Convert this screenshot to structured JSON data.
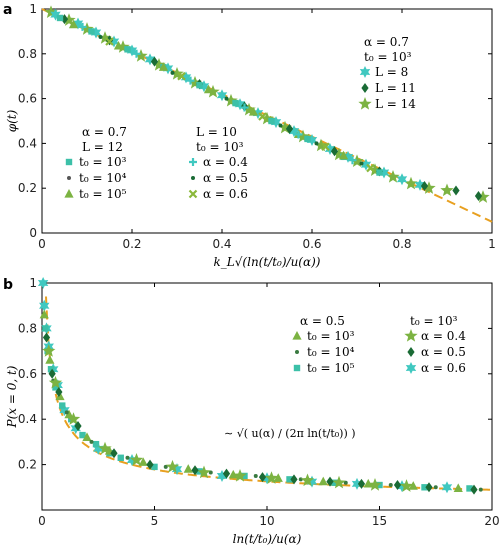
{
  "chart_data": [
    {
      "panel": "a",
      "type": "scatter",
      "xlabel": "k_L√(ln(t/t₀)/u(α))",
      "ylabel": "φ(t)",
      "xlim": [
        0,
        1
      ],
      "ylim": [
        0,
        1
      ],
      "xticks": [
        0,
        0.2,
        0.4,
        0.6,
        0.8,
        1
      ],
      "xtick_labels": [
        "0",
        "0.2",
        "0.4",
        "0.6",
        "0.8",
        "1"
      ],
      "yticks": [
        0,
        0.2,
        0.4,
        0.6,
        0.8,
        1
      ],
      "ytick_labels": [
        "0",
        "0.2",
        "0.4",
        "0.6",
        "0.8",
        "1"
      ],
      "reference_curve": {
        "x": [
          0,
          1
        ],
        "y": [
          1,
          0.05
        ],
        "color": "#e8a020",
        "dash": true
      },
      "legend_groups": [
        {
          "header": [
            "α = 0.7",
            "L = 12"
          ],
          "position": "mid-left",
          "entries": [
            {
              "label": "t₀ = 10³",
              "marker": "square",
              "color": "#3cc0a8"
            },
            {
              "label": "t₀ = 10⁴",
              "marker": "dot",
              "color": "#555555"
            },
            {
              "label": "t₀ = 10⁵",
              "marker": "triangle",
              "color": "#7cb342"
            }
          ]
        },
        {
          "header": [
            "L = 10",
            "t₀ = 10³"
          ],
          "position": "mid-center",
          "entries": [
            {
              "label": "α = 0.4",
              "marker": "plus",
              "color": "#40c8c0"
            },
            {
              "label": "α = 0.5",
              "marker": "dot",
              "color": "#1a6b35"
            },
            {
              "label": "α = 0.6",
              "marker": "cross",
              "color": "#8ab83a"
            }
          ]
        },
        {
          "header": [
            "α = 0.7",
            "t₀ = 10³"
          ],
          "position": "top-right",
          "entries": [
            {
              "label": "L = 8",
              "marker": "star6",
              "color": "#40c8c0"
            },
            {
              "label": "L = 11",
              "marker": "diamond",
              "color": "#1a6b35"
            },
            {
              "label": "L = 14",
              "marker": "star5",
              "color": "#7cb342"
            }
          ]
        }
      ],
      "series": [
        {
          "marker": "star5",
          "color": "#7cb342",
          "x": [
            0.02,
            0.06,
            0.1,
            0.14,
            0.18,
            0.22,
            0.26,
            0.3,
            0.34,
            0.38,
            0.42,
            0.46,
            0.5,
            0.54,
            0.58,
            0.62,
            0.66,
            0.7,
            0.74,
            0.78,
            0.82,
            0.86,
            0.9,
            0.98
          ],
          "y": [
            0.985,
            0.95,
            0.91,
            0.87,
            0.83,
            0.79,
            0.75,
            0.71,
            0.67,
            0.63,
            0.59,
            0.55,
            0.51,
            0.47,
            0.43,
            0.39,
            0.35,
            0.32,
            0.28,
            0.25,
            0.22,
            0.2,
            0.19,
            0.16
          ]
        },
        {
          "marker": "star6",
          "color": "#40c8c0",
          "x": [
            0.03,
            0.08,
            0.12,
            0.16,
            0.2,
            0.24,
            0.28,
            0.32,
            0.36,
            0.4,
            0.44,
            0.48,
            0.52,
            0.56,
            0.6,
            0.64,
            0.68,
            0.72,
            0.76,
            0.8,
            0.84
          ],
          "y": [
            0.975,
            0.935,
            0.895,
            0.855,
            0.815,
            0.775,
            0.735,
            0.695,
            0.655,
            0.615,
            0.575,
            0.535,
            0.495,
            0.455,
            0.415,
            0.375,
            0.34,
            0.305,
            0.27,
            0.24,
            0.215
          ]
        },
        {
          "marker": "diamond",
          "color": "#1a6b35",
          "x": [
            0.05,
            0.15,
            0.25,
            0.35,
            0.45,
            0.55,
            0.65,
            0.75,
            0.85,
            0.92,
            0.97
          ],
          "y": [
            0.955,
            0.86,
            0.765,
            0.665,
            0.565,
            0.465,
            0.365,
            0.275,
            0.21,
            0.19,
            0.165
          ]
        },
        {
          "marker": "square",
          "color": "#3cc0a8",
          "x": [
            0.04,
            0.11,
            0.19,
            0.27,
            0.35,
            0.43,
            0.51,
            0.59,
            0.67,
            0.75
          ],
          "y": [
            0.96,
            0.9,
            0.82,
            0.74,
            0.66,
            0.58,
            0.5,
            0.42,
            0.34,
            0.27
          ]
        },
        {
          "marker": "triangle",
          "color": "#7cb342",
          "x": [
            0.07,
            0.17,
            0.27,
            0.37,
            0.47,
            0.57,
            0.67
          ],
          "y": [
            0.93,
            0.835,
            0.74,
            0.64,
            0.54,
            0.44,
            0.345
          ]
        },
        {
          "marker": "plus",
          "color": "#40c8c0",
          "x": [
            0.09,
            0.21,
            0.33,
            0.45,
            0.57,
            0.69
          ],
          "y": [
            0.92,
            0.8,
            0.68,
            0.56,
            0.44,
            0.325
          ]
        },
        {
          "marker": "dot",
          "color": "#1a6b35",
          "x": [
            0.13,
            0.29,
            0.41,
            0.53,
            0.61,
            0.71
          ],
          "y": [
            0.875,
            0.715,
            0.6,
            0.48,
            0.4,
            0.31
          ]
        },
        {
          "marker": "cross",
          "color": "#8ab83a",
          "x": [
            0.15,
            0.31,
            0.49,
            0.63,
            0.73
          ],
          "y": [
            0.855,
            0.7,
            0.52,
            0.385,
            0.29
          ]
        }
      ]
    },
    {
      "panel": "b",
      "type": "scatter",
      "xlabel": "ln(t/t₀)/u(α)",
      "ylabel": "P(x = 0, t)",
      "annotation": "∼ √( u(α) / (2π ln(t/t₀)) )",
      "xlim": [
        0,
        20
      ],
      "ylim": [
        0,
        1
      ],
      "xticks": [
        0,
        5,
        10,
        15,
        20
      ],
      "xtick_labels": [
        "0",
        "5",
        "10",
        "15",
        "20"
      ],
      "yticks": [
        0.2,
        0.4,
        0.6,
        0.8,
        1
      ],
      "ytick_labels": [
        "0.2",
        "0.4",
        "0.6",
        "0.8",
        "1"
      ],
      "reference_curve": {
        "function": "sqrt(1/(2*pi*x))",
        "color": "#e8a020",
        "dash": true
      },
      "legend_groups": [
        {
          "header": [
            "α = 0.5"
          ],
          "position": "top-center",
          "entries": [
            {
              "label": "t₀ = 10³",
              "marker": "triangle",
              "color": "#7cb342"
            },
            {
              "label": "t₀ = 10⁴",
              "marker": "dot",
              "color": "#3a7a40"
            },
            {
              "label": "t₀ = 10⁵",
              "marker": "square",
              "color": "#3cc0a8"
            }
          ]
        },
        {
          "header": [
            "t₀ = 10³"
          ],
          "position": "top-right",
          "entries": [
            {
              "label": "α = 0.4",
              "marker": "star5",
              "color": "#7cb342"
            },
            {
              "label": "α = 0.5",
              "marker": "diamond",
              "color": "#1a6b35"
            },
            {
              "label": "α = 0.6",
              "marker": "star6",
              "color": "#40c8c0"
            }
          ]
        }
      ],
      "series": [
        {
          "marker": "star6",
          "color": "#40c8c0",
          "x": [
            0.05,
            0.1,
            0.2,
            0.3,
            0.5,
            0.7,
            1.0,
            1.5,
            2.5,
            4,
            6,
            8,
            10,
            12,
            14,
            16,
            18
          ],
          "y": [
            1.0,
            0.9,
            0.8,
            0.72,
            0.62,
            0.55,
            0.44,
            0.36,
            0.27,
            0.22,
            0.18,
            0.15,
            0.14,
            0.125,
            0.115,
            0.105,
            0.1
          ]
        },
        {
          "marker": "square",
          "color": "#3cc0a8",
          "x": [
            0.15,
            0.25,
            0.4,
            0.6,
            0.9,
            1.3,
            1.8,
            2.4,
            3.0,
            3.5,
            5,
            7,
            9,
            11,
            13,
            15,
            17,
            19
          ],
          "y": [
            0.8,
            0.7,
            0.62,
            0.54,
            0.46,
            0.4,
            0.33,
            0.29,
            0.25,
            0.23,
            0.19,
            0.17,
            0.15,
            0.135,
            0.12,
            0.11,
            0.1,
            0.095
          ]
        },
        {
          "marker": "triangle",
          "color": "#7cb342",
          "x": [
            0.1,
            0.35,
            0.8,
            1.2,
            2,
            3,
            4.5,
            6.5,
            8.5,
            10.5,
            12.5,
            14.5,
            16.5,
            18.5
          ],
          "y": [
            0.86,
            0.66,
            0.5,
            0.42,
            0.32,
            0.26,
            0.21,
            0.18,
            0.155,
            0.14,
            0.125,
            0.115,
            0.105,
            0.095
          ]
        },
        {
          "marker": "dot",
          "color": "#3a7a40",
          "x": [
            0.5,
            1.1,
            2.2,
            3.8,
            5.5,
            7.5,
            9.5,
            11.5,
            13.5,
            15.5,
            17.5,
            19.5
          ],
          "y": [
            0.57,
            0.43,
            0.3,
            0.23,
            0.19,
            0.165,
            0.15,
            0.135,
            0.12,
            0.11,
            0.1,
            0.09
          ]
        },
        {
          "marker": "star5",
          "color": "#7cb342",
          "x": [
            0.3,
            0.6,
            1.4,
            2.8,
            4.2,
            5.8,
            7.2,
            8.8,
            10.2,
            11.8,
            13.2,
            14.8,
            16.2
          ],
          "y": [
            0.7,
            0.56,
            0.4,
            0.27,
            0.22,
            0.19,
            0.165,
            0.15,
            0.14,
            0.13,
            0.12,
            0.11,
            0.105
          ]
        },
        {
          "marker": "diamond",
          "color": "#1a6b35",
          "x": [
            0.2,
            0.45,
            0.75,
            1.6,
            3.2,
            4.8,
            6.8,
            8.2,
            9.8,
            11.2,
            12.8,
            14.2,
            15.8,
            17.2,
            19.2
          ],
          "y": [
            0.76,
            0.6,
            0.52,
            0.37,
            0.25,
            0.2,
            0.175,
            0.16,
            0.145,
            0.135,
            0.125,
            0.115,
            0.11,
            0.1,
            0.09
          ]
        }
      ]
    }
  ]
}
